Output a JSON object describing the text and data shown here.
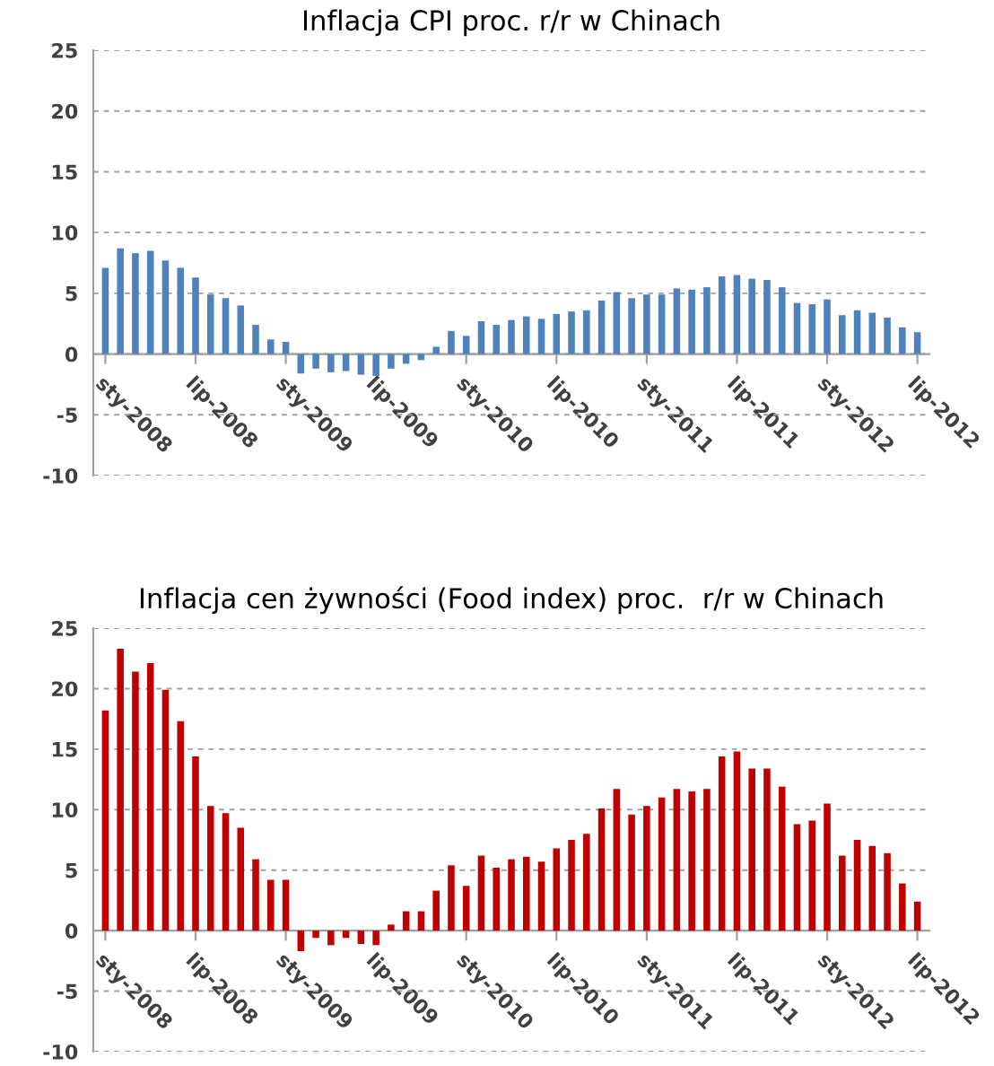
{
  "chart_data": [
    {
      "type": "bar",
      "title": "Inflacja CPI proc. r/r w Chinach",
      "categories": [
        "sty-2008",
        null,
        null,
        null,
        null,
        null,
        "lip-2008",
        null,
        null,
        null,
        null,
        null,
        "sty-2009",
        null,
        null,
        null,
        null,
        null,
        "lip-2009",
        null,
        null,
        null,
        null,
        null,
        "sty-2010",
        null,
        null,
        null,
        null,
        null,
        "lip-2010",
        null,
        null,
        null,
        null,
        null,
        "sty-2011",
        null,
        null,
        null,
        null,
        null,
        "lip-2011",
        null,
        null,
        null,
        null,
        null,
        "sty-2012",
        null,
        null,
        null,
        null,
        null,
        "lip-2012"
      ],
      "series": [
        {
          "color": "#4f81bd",
          "values": [
            7.1,
            8.7,
            8.3,
            8.5,
            7.7,
            7.1,
            6.3,
            4.9,
            4.6,
            4.0,
            2.4,
            1.2,
            1.0,
            -1.6,
            -1.2,
            -1.5,
            -1.4,
            -1.7,
            -1.8,
            -1.2,
            -0.8,
            -0.5,
            0.6,
            1.9,
            1.5,
            2.7,
            2.4,
            2.8,
            3.1,
            2.9,
            3.3,
            3.5,
            3.6,
            4.4,
            5.1,
            4.6,
            4.9,
            4.9,
            5.4,
            5.3,
            5.5,
            6.4,
            6.5,
            6.2,
            6.1,
            5.5,
            4.2,
            4.1,
            4.5,
            3.2,
            3.6,
            3.4,
            3.0,
            2.2,
            1.8
          ]
        }
      ],
      "ylim": [
        -10,
        25
      ],
      "yticks": [
        -10,
        -5,
        0,
        5,
        10,
        15,
        20,
        25
      ],
      "grid": "y"
    },
    {
      "type": "bar",
      "title": "Inflacja cen żywności (Food index) proc.  r/r w Chinach",
      "categories": [
        "sty-2008",
        null,
        null,
        null,
        null,
        null,
        "lip-2008",
        null,
        null,
        null,
        null,
        null,
        "sty-2009",
        null,
        null,
        null,
        null,
        null,
        "lip-2009",
        null,
        null,
        null,
        null,
        null,
        "sty-2010",
        null,
        null,
        null,
        null,
        null,
        "lip-2010",
        null,
        null,
        null,
        null,
        null,
        "sty-2011",
        null,
        null,
        null,
        null,
        null,
        "lip-2011",
        null,
        null,
        null,
        null,
        null,
        "sty-2012",
        null,
        null,
        null,
        null,
        null,
        "lip-2012"
      ],
      "series": [
        {
          "color": "#c00000",
          "values": [
            18.2,
            23.3,
            21.4,
            22.1,
            19.9,
            17.3,
            14.4,
            10.3,
            9.7,
            8.5,
            5.9,
            4.2,
            4.2,
            -1.7,
            -0.6,
            -1.2,
            -0.6,
            -1.1,
            -1.2,
            0.5,
            1.6,
            1.6,
            3.3,
            5.4,
            3.7,
            6.2,
            5.2,
            5.9,
            6.1,
            5.7,
            6.8,
            7.5,
            8.0,
            10.1,
            11.7,
            9.6,
            10.3,
            11.0,
            11.7,
            11.5,
            11.7,
            14.4,
            14.8,
            13.4,
            13.4,
            11.9,
            8.8,
            9.1,
            10.5,
            6.2,
            7.5,
            7.0,
            6.4,
            3.9,
            2.4
          ]
        }
      ],
      "ylim": [
        -10,
        25
      ],
      "yticks": [
        -10,
        -5,
        0,
        5,
        10,
        15,
        20,
        25
      ],
      "grid": "y"
    }
  ]
}
